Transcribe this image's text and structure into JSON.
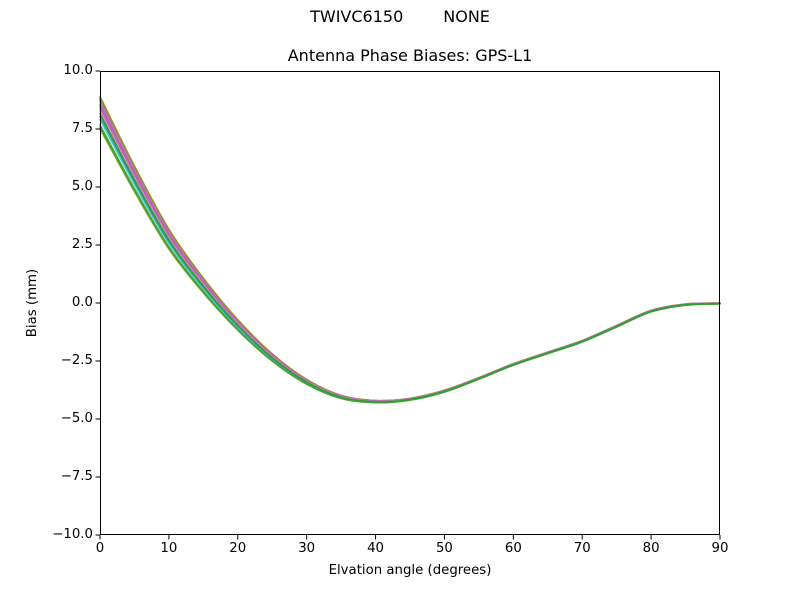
{
  "figure": {
    "suptitle_left": "TWIVC6150",
    "suptitle_right": "NONE",
    "background": "#ffffff"
  },
  "colors": {
    "axes_edge": "#000000",
    "tick_color": "#000000",
    "text_color": "#000000"
  },
  "chart_data": {
    "type": "line",
    "title": "Antenna Phase Biases: GPS-L1",
    "xlabel": "Elvation angle (degrees)",
    "ylabel": "Bias (mm)",
    "xlim": [
      0,
      90
    ],
    "ylim": [
      -10,
      10
    ],
    "xticks": [
      0,
      10,
      20,
      30,
      40,
      50,
      60,
      70,
      80,
      90
    ],
    "xtick_labels": [
      "0",
      "10",
      "20",
      "30",
      "40",
      "50",
      "60",
      "70",
      "80",
      "90"
    ],
    "yticks": [
      10.0,
      7.5,
      5.0,
      2.5,
      0.0,
      -2.5,
      -5.0,
      -7.5,
      -10.0
    ],
    "ytick_labels": [
      "10.0",
      "7.5",
      "5.0",
      "2.5",
      "0.0",
      "−2.5",
      "−5.0",
      "−7.5",
      "−10.0"
    ],
    "grid": false,
    "legend_position": "none",
    "line_width": 1.5,
    "x": [
      0,
      5,
      10,
      15,
      20,
      25,
      30,
      35,
      40,
      45,
      50,
      55,
      60,
      65,
      70,
      75,
      80,
      85,
      90
    ],
    "mean_bias": [
      8.2,
      5.35,
      2.75,
      0.75,
      -0.95,
      -2.35,
      -3.4,
      -4.05,
      -4.25,
      -4.15,
      -3.8,
      -3.25,
      -2.65,
      -2.15,
      -1.65,
      -1.0,
      -0.35,
      -0.07,
      -0.02
    ],
    "spread_profile": [
      1.0,
      0.8,
      0.62,
      0.46,
      0.33,
      0.23,
      0.15,
      0.1,
      0.07,
      0.06,
      0.06,
      0.05,
      0.05,
      0.05,
      0.05,
      0.05,
      0.05,
      0.04,
      0.03
    ],
    "envelope_at_0deg": [
      7.5,
      8.9
    ],
    "minimum": {
      "elevation_deg": 41,
      "bias_mm": -4.25
    },
    "series": [
      {
        "id": "line-01",
        "color": "#8d8d8d",
        "offset_mm": 0.18
      },
      {
        "id": "line-02",
        "color": "#9b5b45",
        "offset_mm": 0.57
      },
      {
        "id": "line-03",
        "color": "#c07c72",
        "offset_mm": 0.64
      },
      {
        "id": "line-04",
        "color": "#8f9320",
        "offset_mm": 0.7
      },
      {
        "id": "line-05",
        "color": "#c873c8",
        "offset_mm": 0.47
      },
      {
        "id": "line-06",
        "color": "#9a6ab8",
        "offset_mm": 0.36
      },
      {
        "id": "line-07",
        "color": "#cf5fb4",
        "offset_mm": 0.26
      },
      {
        "id": "line-08",
        "color": "#de8cc8",
        "offset_mm": 0.08
      },
      {
        "id": "line-09",
        "color": "#b0b024",
        "offset_mm": -0.7
      },
      {
        "id": "line-10",
        "color": "#49ad49",
        "offset_mm": -0.52
      },
      {
        "id": "line-11",
        "color": "#5bc8d0",
        "offset_mm": -0.3
      },
      {
        "id": "line-12",
        "color": "#2aa198",
        "offset_mm": -0.16
      },
      {
        "id": "line-13",
        "color": "#3da23d",
        "offset_mm": -0.62
      },
      {
        "id": "line-14",
        "color": "#2f9e32",
        "offset_mm": -0.04
      }
    ]
  }
}
